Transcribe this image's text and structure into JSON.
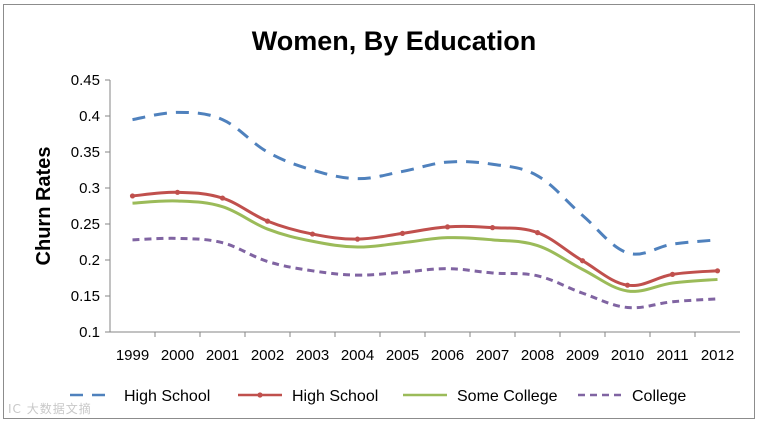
{
  "chart_data": {
    "type": "line",
    "title": "Women, By Education",
    "xlabel": "",
    "ylabel": "Churn Rates",
    "ylim": [
      0.1,
      0.45
    ],
    "yticks": [
      "0.1",
      "0.15",
      "0.2",
      "0.25",
      "0.3",
      "0.35",
      "0.4",
      "0.45"
    ],
    "categories": [
      "1999",
      "2000",
      "2001",
      "2002",
      "2003",
      "2004",
      "2005",
      "2006",
      "2007",
      "2008",
      "2009",
      "2010",
      "2011",
      "2012"
    ],
    "legend_position": "bottom",
    "grid": false,
    "series": [
      {
        "name": "High School",
        "color": "#4f81bd",
        "style": "dashed",
        "values": [
          0.395,
          0.405,
          0.395,
          0.35,
          0.325,
          0.313,
          0.323,
          0.336,
          0.333,
          0.317,
          0.262,
          0.21,
          0.222,
          0.228
        ]
      },
      {
        "name": "High School",
        "color": "#c0504d",
        "style": "solid-markers",
        "values": [
          0.289,
          0.294,
          0.286,
          0.254,
          0.236,
          0.229,
          0.237,
          0.246,
          0.245,
          0.238,
          0.199,
          0.165,
          0.18,
          0.185
        ]
      },
      {
        "name": "Some College",
        "color": "#9bbb59",
        "style": "solid",
        "values": [
          0.279,
          0.282,
          0.274,
          0.243,
          0.226,
          0.218,
          0.224,
          0.231,
          0.228,
          0.22,
          0.187,
          0.157,
          0.168,
          0.173
        ]
      },
      {
        "name": "College",
        "color": "#8064a2",
        "style": "dashed-short",
        "values": [
          0.228,
          0.23,
          0.224,
          0.198,
          0.185,
          0.179,
          0.183,
          0.188,
          0.182,
          0.178,
          0.154,
          0.134,
          0.142,
          0.146
        ]
      }
    ]
  },
  "watermark": "IC 大数据文摘"
}
